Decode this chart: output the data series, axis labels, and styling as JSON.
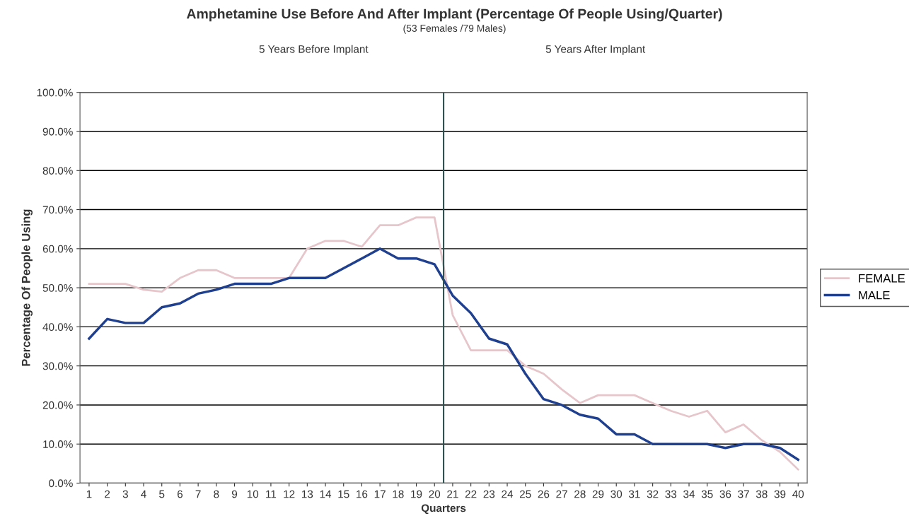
{
  "chart_data": {
    "type": "line",
    "title": "Amphetamine Use Before And After Implant (Percentage Of People Using/Quarter)",
    "subtitle": "(53 Females /79 Males)",
    "annotations": [
      "5 Years Before Implant",
      "5 Years After Implant"
    ],
    "xlabel": "Quarters",
    "ylabel": "Percentage Of People Using",
    "x": [
      1,
      2,
      3,
      4,
      5,
      6,
      7,
      8,
      9,
      10,
      11,
      12,
      13,
      14,
      15,
      16,
      17,
      18,
      19,
      20,
      21,
      22,
      23,
      24,
      25,
      26,
      27,
      28,
      29,
      30,
      31,
      32,
      33,
      34,
      35,
      36,
      37,
      38,
      39,
      40
    ],
    "series": [
      {
        "name": "FEMALE",
        "color": "#e6c6ca",
        "values": [
          51,
          51,
          51,
          49.5,
          49,
          52.5,
          54.5,
          54.5,
          52.5,
          52.5,
          52.5,
          52.5,
          60,
          62,
          62,
          60.5,
          66,
          66,
          68,
          68,
          43,
          34,
          34,
          34,
          30,
          28,
          24,
          20.5,
          22.5,
          22.5,
          22.5,
          20.5,
          18.5,
          17,
          18.5,
          13,
          15,
          11,
          8,
          3.5
        ]
      },
      {
        "name": "MALE",
        "color": "#1f3f8f",
        "values": [
          37,
          42,
          41,
          41,
          45,
          46,
          48.5,
          49.5,
          51,
          51,
          51,
          52.5,
          52.5,
          52.5,
          55,
          57.5,
          60,
          57.5,
          57.5,
          56,
          48,
          43.5,
          37,
          35.5,
          28,
          21.5,
          20,
          17.5,
          16.5,
          12.5,
          12.5,
          10,
          10,
          10,
          10,
          9,
          10,
          10,
          9,
          6
        ]
      }
    ],
    "xlim": [
      0.5,
      40.5
    ],
    "xticks": [
      1,
      2,
      3,
      4,
      5,
      6,
      7,
      8,
      9,
      10,
      11,
      12,
      13,
      14,
      15,
      16,
      17,
      18,
      19,
      20,
      21,
      22,
      23,
      24,
      25,
      26,
      27,
      28,
      29,
      30,
      31,
      32,
      33,
      34,
      35,
      36,
      37,
      38,
      39,
      40
    ],
    "ylim": [
      0,
      100
    ],
    "yticks": [
      {
        "value": 0,
        "label": "0.0%"
      },
      {
        "value": 10,
        "label": "10.0%"
      },
      {
        "value": 20,
        "label": "20.0%"
      },
      {
        "value": 30,
        "label": "30.0%"
      },
      {
        "value": 40,
        "label": "40.0%"
      },
      {
        "value": 50,
        "label": "50.0%"
      },
      {
        "value": 60,
        "label": "60.0%"
      },
      {
        "value": 70,
        "label": "70.0%"
      },
      {
        "value": 80,
        "label": "80.0%"
      },
      {
        "value": 90,
        "label": "90.0%"
      },
      {
        "value": 100,
        "label": "100.0%"
      }
    ],
    "ref_lines": [
      {
        "axis": "x",
        "value": 20.5,
        "color": "#2f4f4f"
      }
    ],
    "grid": "y",
    "legend": "right",
    "marker": "none",
    "line_style": "solid"
  }
}
